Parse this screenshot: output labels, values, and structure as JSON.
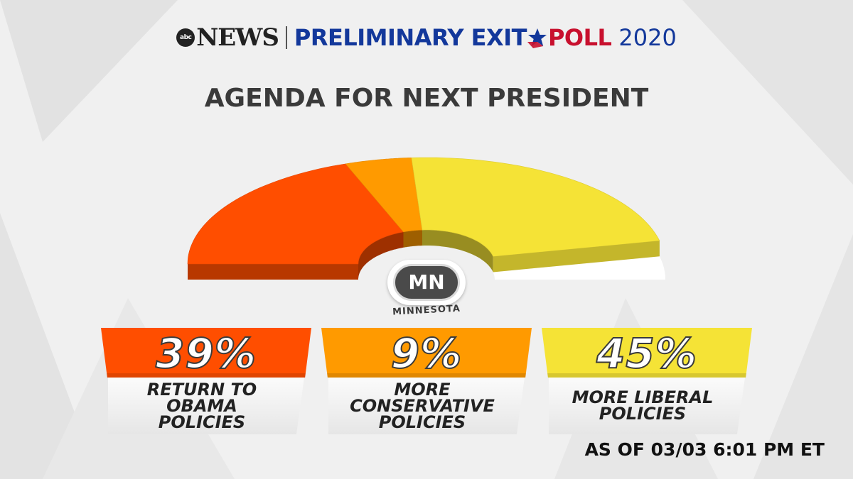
{
  "header": {
    "brand_badge": "abc",
    "brand_name": "NEWS",
    "title_a": "PRELIMINARY EXIT",
    "star_icon": "star-icon",
    "title_b": "POLL",
    "year": "2020"
  },
  "title": "AGENDA FOR NEXT PRESIDENT",
  "state": {
    "abbr": "MN",
    "name": "MINNESOTA"
  },
  "chart_data": {
    "type": "pie",
    "title": "AGENDA FOR NEXT PRESIDENT",
    "layout": "half-donut",
    "categories": [
      "RETURN TO\nOBAMA\nPOLICIES",
      "MORE\nCONSERVATIVE\nPOLICIES",
      "MORE LIBERAL\nPOLICIES"
    ],
    "values": [
      39,
      9,
      45
    ],
    "value_labels": [
      "39%",
      "9%",
      "45%"
    ],
    "colors": [
      "#ff4e00",
      "#ff9a00",
      "#f5e336"
    ],
    "unit": "%"
  },
  "footer": {
    "as_of": "AS OF 03/03 6:01 PM ET"
  }
}
